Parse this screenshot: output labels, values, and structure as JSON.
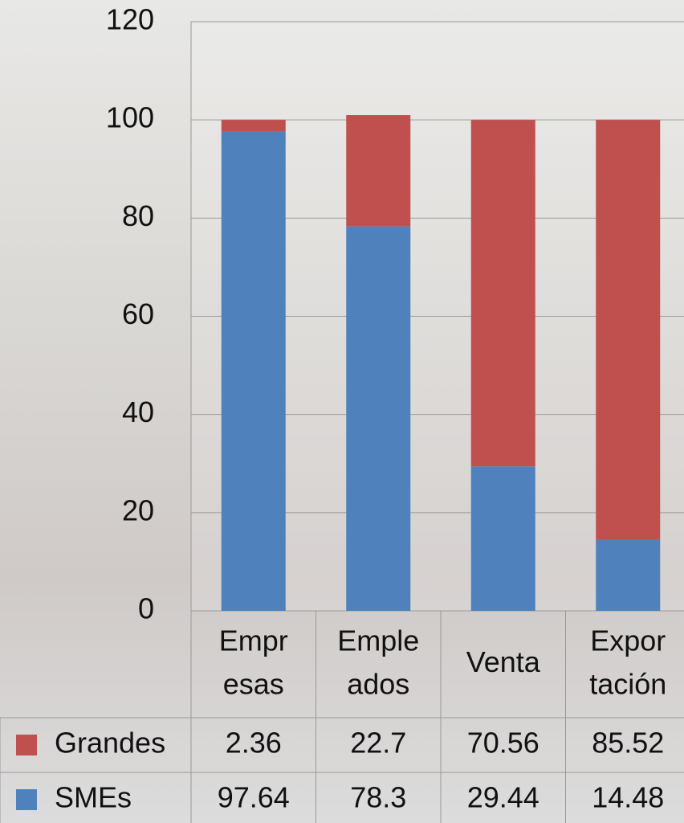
{
  "chart_data": {
    "type": "stacked-bar",
    "categories": [
      "Empr\nesas",
      "Emple\nados",
      "Venta",
      "Expor\ntación"
    ],
    "series": [
      {
        "name": "Grandes",
        "color": "#c0504d",
        "values": [
          2.36,
          22.7,
          70.56,
          85.52
        ]
      },
      {
        "name": "SMEs",
        "color": "#4f81bd",
        "values": [
          97.64,
          78.3,
          29.44,
          14.48
        ]
      }
    ],
    "ylim": [
      0,
      120
    ],
    "yticks": [
      0,
      20,
      40,
      60,
      80,
      100,
      120
    ],
    "grid": true
  }
}
